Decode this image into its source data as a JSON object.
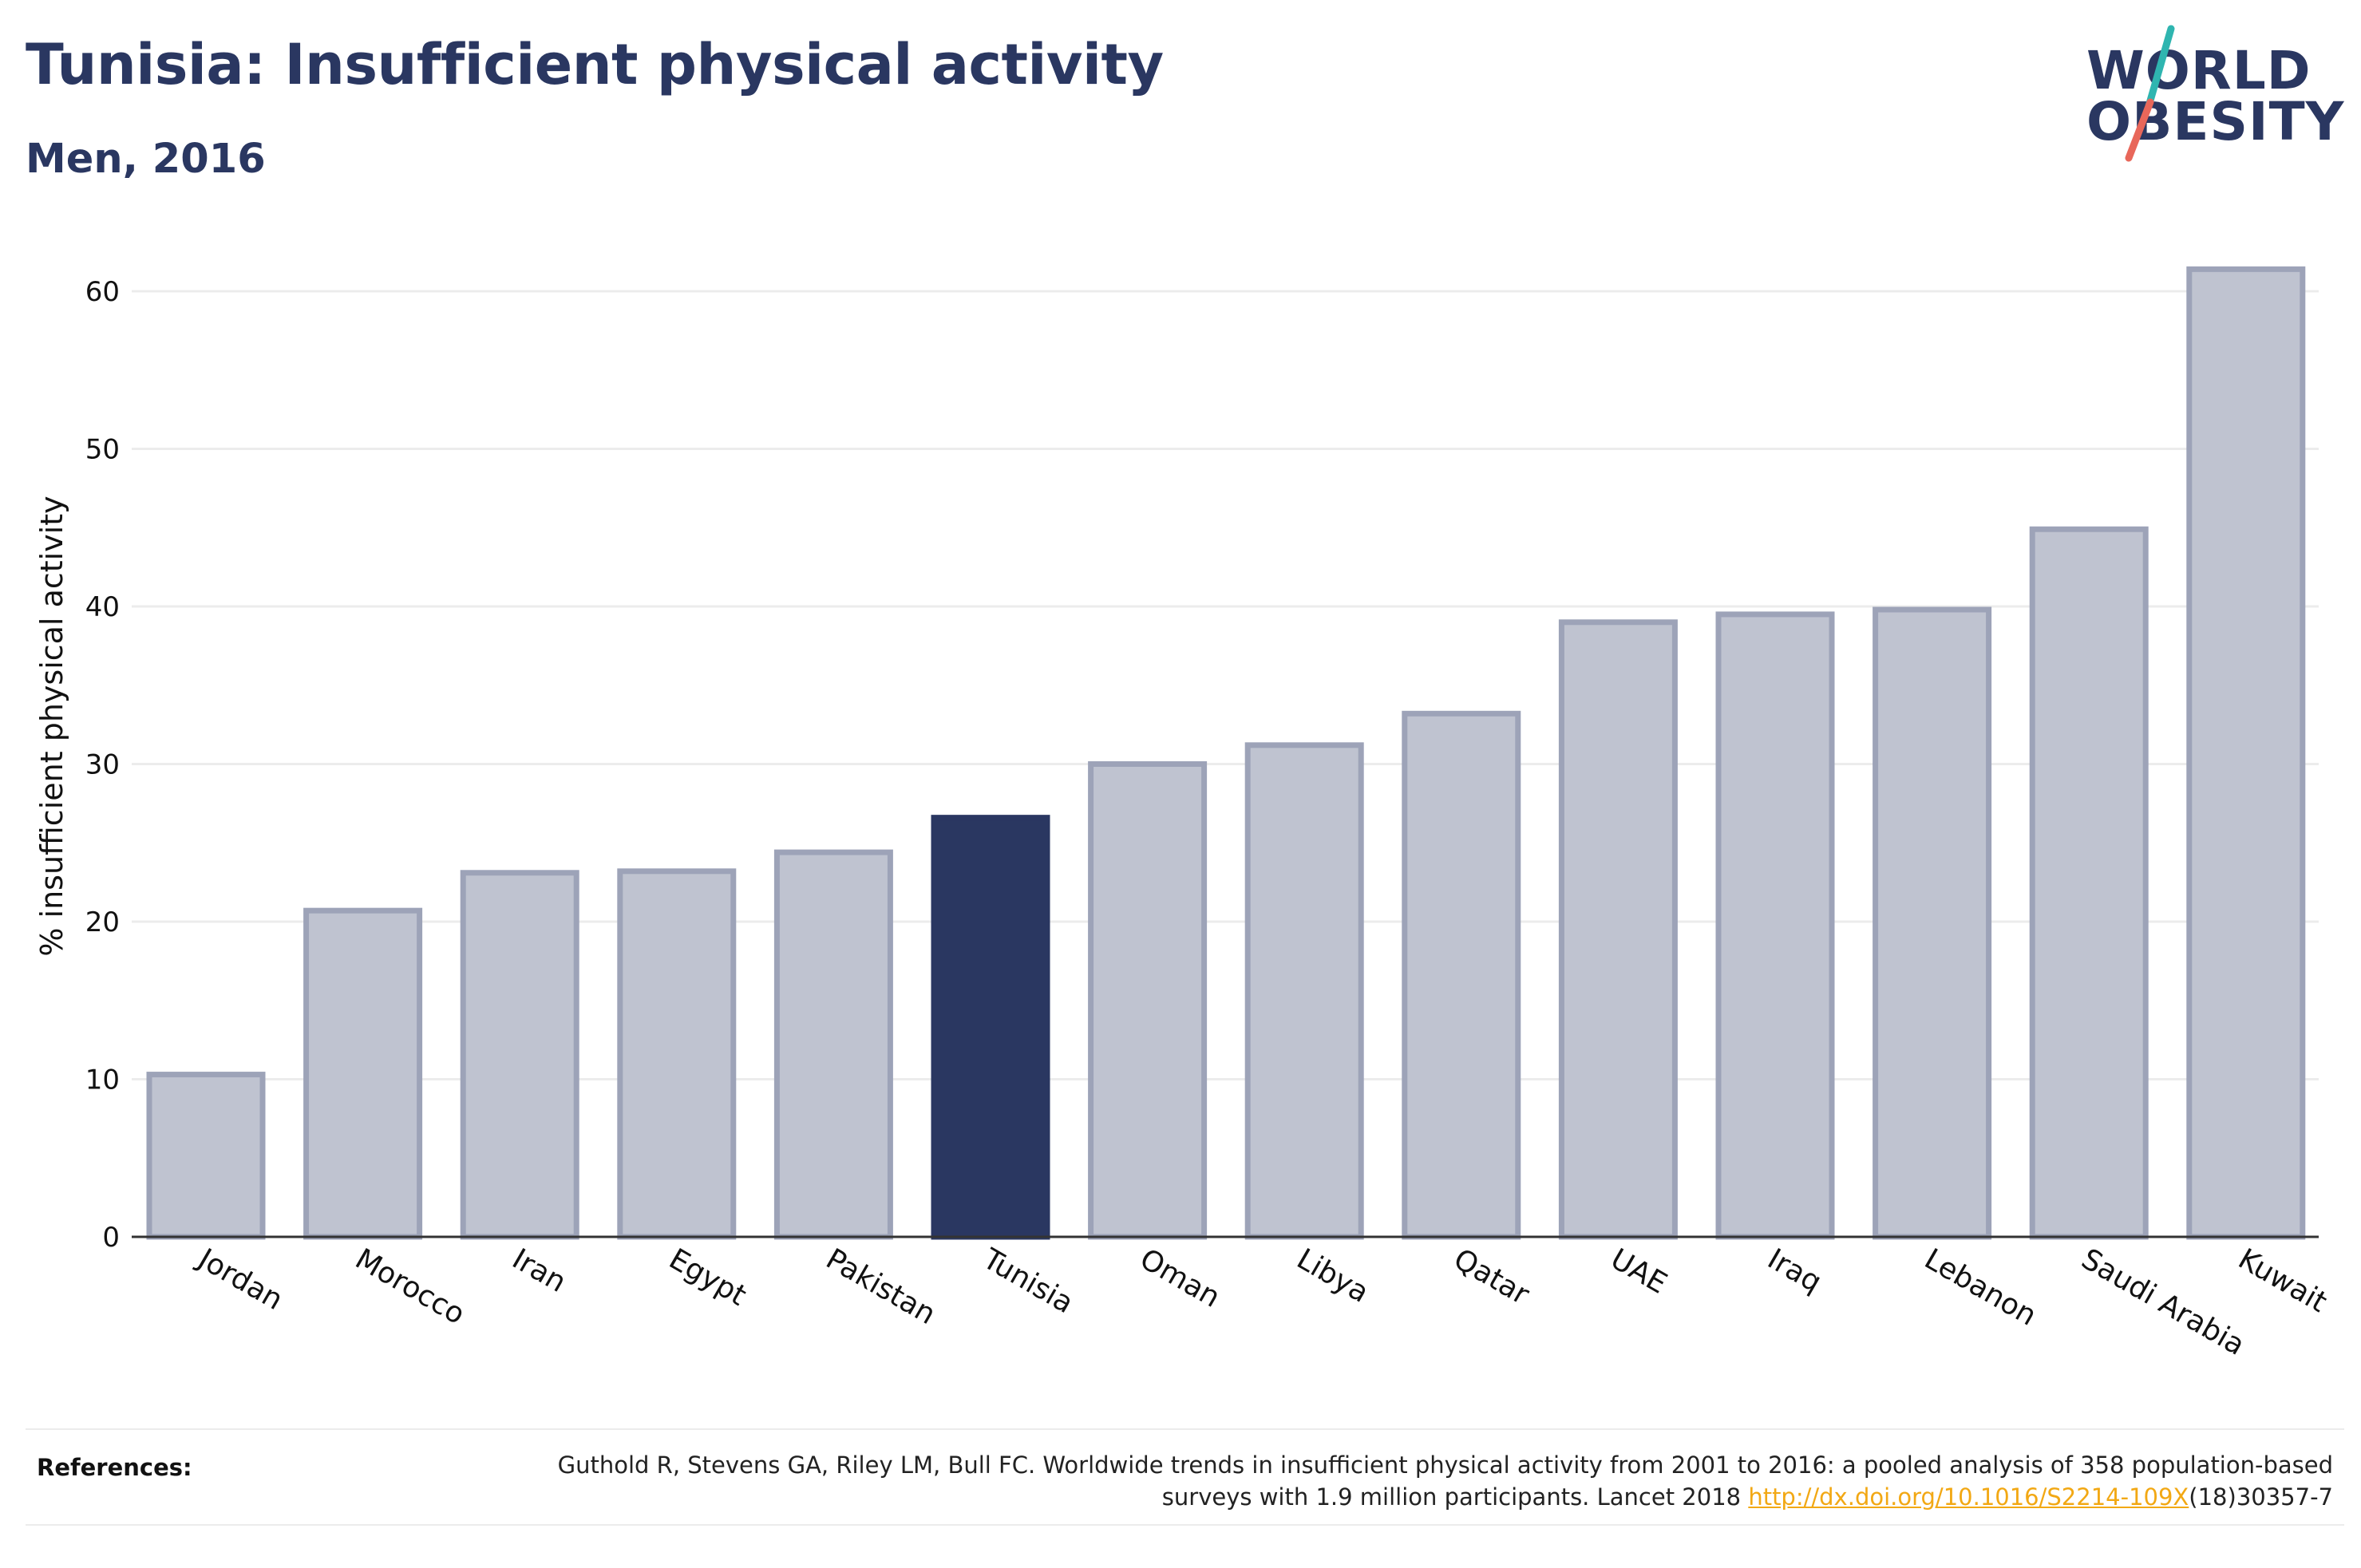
{
  "header": {
    "title": "Tunisia: Insufficient physical activity",
    "subtitle": "Men, 2016"
  },
  "logo": {
    "line1": "WORLD",
    "line2": "OBESITY",
    "text_color": "#2a3761",
    "slash_colors": [
      "#2fb5b0",
      "#e8675a"
    ]
  },
  "chart_data": {
    "type": "bar",
    "ylabel": "% insufficient physical activity",
    "xlabel": "",
    "ylim": [
      0,
      64
    ],
    "yticks": [
      0,
      10,
      20,
      30,
      40,
      50,
      60
    ],
    "grid": true,
    "categories": [
      "Jordan",
      "Morocco",
      "Iran",
      "Egypt",
      "Pakistan",
      "Tunisia",
      "Oman",
      "Libya",
      "Qatar",
      "UAE",
      "Iraq",
      "Lebanon",
      "Saudi Arabia",
      "Kuwait"
    ],
    "values": [
      10.3,
      20.7,
      23.1,
      23.2,
      24.4,
      26.6,
      30.0,
      31.2,
      33.2,
      39.0,
      39.5,
      39.8,
      44.9,
      61.4
    ],
    "highlight": "Tunisia",
    "colors": {
      "bar_fill": "#bfc3d0",
      "bar_stroke": "#9da3b8",
      "highlight_fill": "#2a3761",
      "grid": "#ececec",
      "axis": "#333333"
    }
  },
  "references": {
    "label": "References:",
    "text_before": "Guthold R, Stevens GA, Riley LM, Bull FC. Worldwide trends in insufficient physical activity from 2001 to 2016: a pooled analysis of 358 population-based surveys with 1.9 million participants. Lancet 2018 ",
    "link_text": "http://dx.doi.org/10.1016/S2214-109X",
    "text_after": "(18)30357-7",
    "link_color": "#f2a814"
  }
}
